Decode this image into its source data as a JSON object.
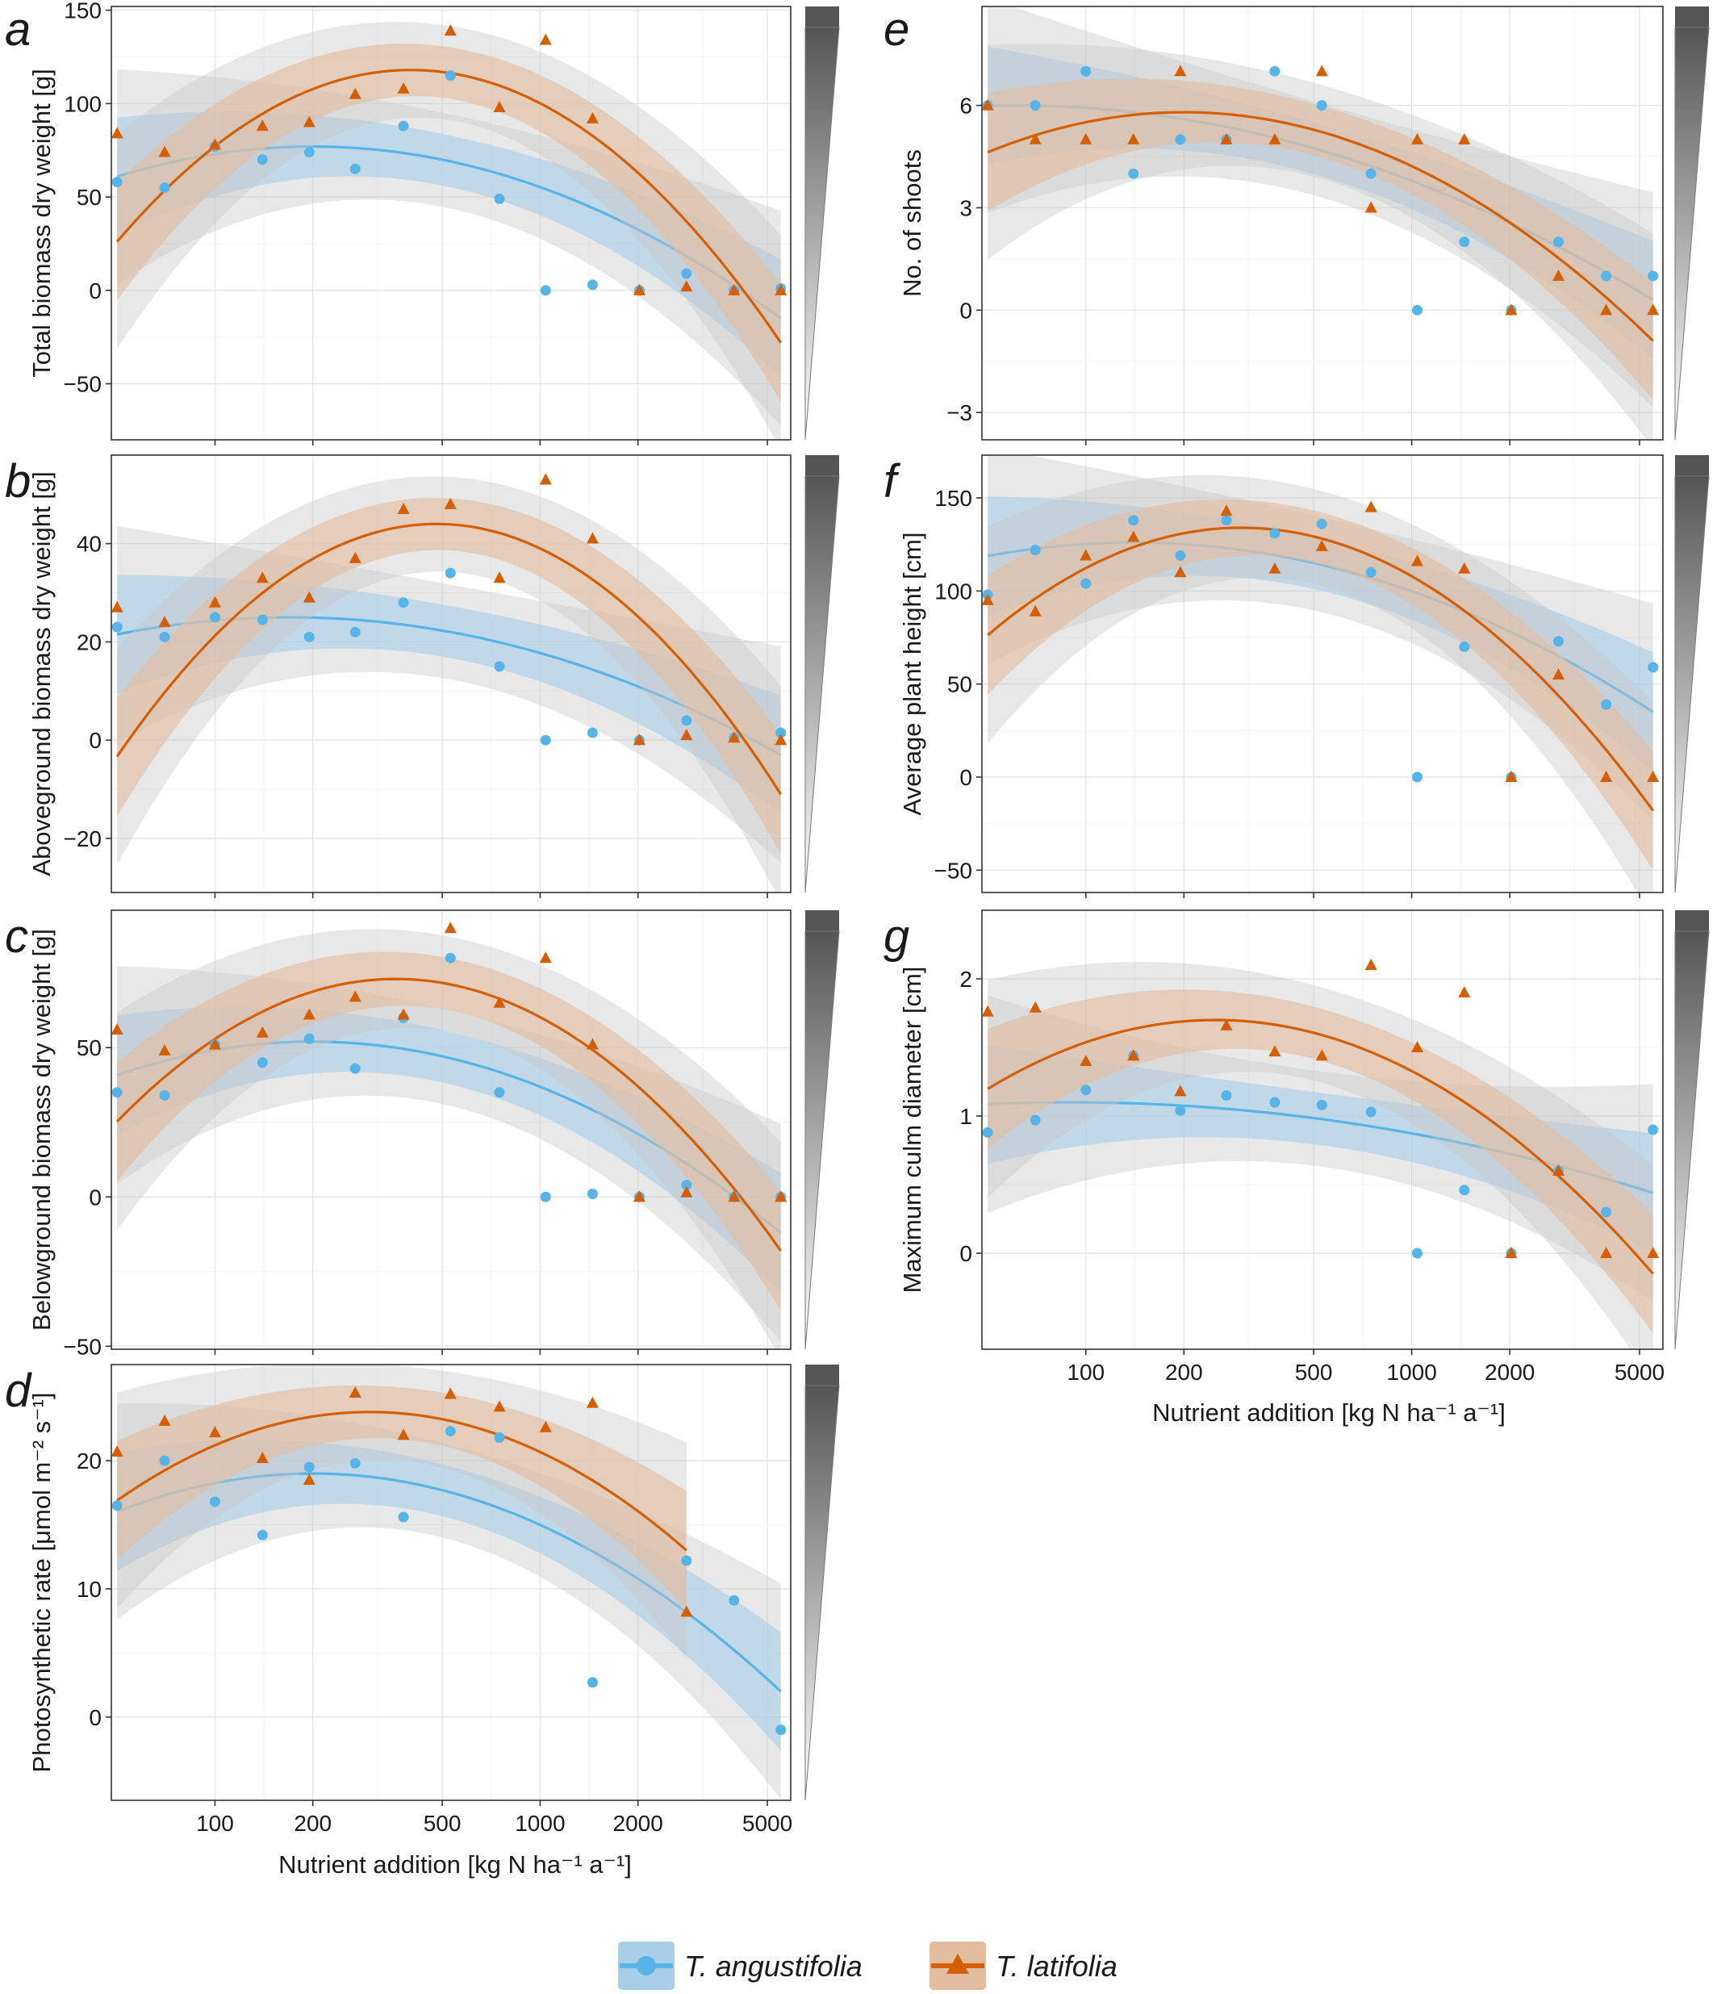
{
  "figure": {
    "xlabel": "Nutrient addition [kg N ha⁻¹ a⁻¹]",
    "x_tick_labels": [
      "100",
      "200",
      "500",
      "1000",
      "2000",
      "5000"
    ],
    "x_tick_values": [
      100,
      200,
      500,
      1000,
      2000,
      5000
    ],
    "x_scale": "log",
    "grid": true,
    "band_colors": {
      "angustifolia": "#a9cfe8",
      "latifolia": "#e3bd9f",
      "ci": "#c8c8c8"
    },
    "gradient_colors": {
      "top": "#555555",
      "bottom": "#ffffff"
    },
    "legend": {
      "position": "bottom-center",
      "items": [
        {
          "label": "T. angustifolia",
          "color": "#56b4e9",
          "marker": "circle"
        },
        {
          "label": "T. latifolia",
          "color": "#d55e00",
          "marker": "triangle"
        }
      ]
    }
  },
  "chart_data": [
    {
      "type": "scatter",
      "panel": "a",
      "ylabel": "Total biomass dry weight [g]",
      "ylim": [
        -80,
        152
      ],
      "yticks": [
        -50,
        0,
        50,
        100,
        150
      ],
      "series": [
        {
          "name": "T. angustifolia",
          "fit_peak": [
            200,
            77
          ],
          "fit_end": -15,
          "x": [
            50,
            70,
            100,
            140,
            195,
            270,
            380,
            530,
            750,
            1040,
            1450,
            2020,
            2820,
            3950,
            5500
          ],
          "y": [
            58,
            55,
            77,
            70,
            74,
            65,
            88,
            115,
            49,
            0,
            3,
            0,
            9,
            0,
            1
          ]
        },
        {
          "name": "T. latifolia",
          "fit_peak": [
            400,
            118
          ],
          "fit_end": -28,
          "x": [
            50,
            70,
            100,
            140,
            195,
            270,
            380,
            530,
            750,
            1040,
            1450,
            2020,
            2820,
            3950,
            5500
          ],
          "y": [
            84,
            74,
            78,
            88,
            90,
            105,
            108,
            139,
            98,
            134,
            92,
            0,
            2,
            0,
            0
          ]
        }
      ]
    },
    {
      "type": "scatter",
      "panel": "b",
      "ylabel": "Aboveground biomass dry weight [g]",
      "ylim": [
        -31,
        58
      ],
      "yticks": [
        -20,
        0,
        20,
        40
      ],
      "series": [
        {
          "name": "T. angustifolia",
          "fit_peak": [
            170,
            25
          ],
          "fit_end": -3,
          "x": [
            50,
            70,
            100,
            140,
            195,
            270,
            380,
            530,
            750,
            1040,
            1450,
            2020,
            2820,
            3950,
            5500
          ],
          "y": [
            23,
            21,
            25,
            24.5,
            21,
            22,
            28,
            34,
            15,
            0,
            1.5,
            0,
            4,
            0.5,
            1.5
          ]
        },
        {
          "name": "T. latifolia",
          "fit_peak": [
            480,
            44
          ],
          "fit_end": -11,
          "x": [
            50,
            70,
            100,
            140,
            195,
            270,
            380,
            530,
            750,
            1040,
            1450,
            2020,
            2820,
            3950,
            5500
          ],
          "y": [
            27,
            24,
            28,
            33,
            29,
            37,
            47,
            48,
            33,
            53,
            41,
            0,
            1,
            0.5,
            0
          ]
        }
      ]
    },
    {
      "type": "scatter",
      "panel": "c",
      "ylabel": "Belowground biomass dry weight [g]",
      "ylim": [
        -51,
        96
      ],
      "yticks": [
        -50,
        0,
        50
      ],
      "series": [
        {
          "name": "T. angustifolia",
          "fit_peak": [
            200,
            52
          ],
          "fit_end": -12,
          "x": [
            50,
            70,
            100,
            140,
            195,
            270,
            380,
            530,
            750,
            1040,
            1450,
            2020,
            2820,
            3950,
            5500
          ],
          "y": [
            35,
            34,
            51,
            45,
            53,
            43,
            60,
            80,
            35,
            0,
            1,
            0,
            4,
            0,
            0
          ]
        },
        {
          "name": "T. latifolia",
          "fit_peak": [
            360,
            73
          ],
          "fit_end": -18,
          "x": [
            50,
            70,
            100,
            140,
            195,
            270,
            380,
            530,
            750,
            1040,
            1450,
            2020,
            2820,
            3950,
            5500
          ],
          "y": [
            56,
            49,
            51,
            55,
            61,
            67,
            61,
            90,
            65,
            80,
            51,
            0,
            1.5,
            0,
            0
          ]
        }
      ]
    },
    {
      "type": "scatter",
      "panel": "d",
      "ylabel": "Photosynthetic rate [μmol m⁻² s⁻¹]",
      "ylim": [
        -6.5,
        27.5
      ],
      "yticks": [
        0,
        10,
        20
      ],
      "series": [
        {
          "name": "T. angustifolia",
          "fit_peak": [
            200,
            19
          ],
          "fit_end": 2,
          "x": [
            50,
            70,
            100,
            140,
            195,
            270,
            380,
            530,
            750,
            1450,
            2820,
            3950,
            5500
          ],
          "y": [
            16.5,
            20,
            16.8,
            14.2,
            19.5,
            19.8,
            15.6,
            22.3,
            21.8,
            2.7,
            12.2,
            9.1,
            -1
          ]
        },
        {
          "name": "T. latifolia",
          "fit_peak": [
            300,
            23.8
          ],
          "fit_end": 13,
          "x": [
            50,
            70,
            100,
            140,
            195,
            270,
            380,
            530,
            750,
            1040,
            1450,
            2820
          ],
          "y": [
            20.7,
            23.1,
            22.2,
            20.2,
            18.5,
            25.3,
            22.0,
            25.2,
            24.2,
            22.6,
            24.5,
            8.2
          ]
        }
      ]
    },
    {
      "type": "scatter",
      "panel": "e",
      "ylabel": "No. of shoots",
      "ylim": [
        -3.8,
        8.9
      ],
      "yticks": [
        -3,
        0,
        3,
        6
      ],
      "series": [
        {
          "name": "T. angustifolia",
          "fit_peak": [
            60,
            6
          ],
          "fit_end": 0.3,
          "x": [
            50,
            70,
            100,
            140,
            195,
            270,
            380,
            530,
            750,
            1040,
            1450,
            2020,
            2820,
            3950,
            5500
          ],
          "y": [
            6,
            6,
            7,
            4,
            5,
            5,
            7,
            6,
            4,
            0,
            2,
            0,
            2,
            1,
            1
          ]
        },
        {
          "name": "T. latifolia",
          "fit_peak": [
            200,
            5.8
          ],
          "fit_end": -0.9,
          "x": [
            50,
            70,
            100,
            140,
            195,
            270,
            380,
            530,
            750,
            1040,
            1450,
            2020,
            2820,
            3950,
            5500
          ],
          "y": [
            6,
            5,
            5,
            5,
            7,
            5,
            5,
            7,
            3,
            5,
            5,
            0,
            1,
            0,
            0
          ]
        }
      ]
    },
    {
      "type": "scatter",
      "panel": "f",
      "ylabel": "Average plant height [cm]",
      "ylim": [
        -62,
        173
      ],
      "yticks": [
        -50,
        0,
        50,
        100,
        150
      ],
      "series": [
        {
          "name": "T. angustifolia",
          "fit_peak": [
            140,
            126
          ],
          "fit_end": 35,
          "x": [
            50,
            70,
            100,
            140,
            195,
            270,
            380,
            530,
            750,
            1040,
            1450,
            2020,
            2820,
            3950,
            5500
          ],
          "y": [
            98,
            122,
            104,
            138,
            119,
            138,
            131,
            136,
            110,
            0,
            70,
            0,
            73,
            39,
            59
          ]
        },
        {
          "name": "T. latifolia",
          "fit_peak": [
            300,
            134
          ],
          "fit_end": -18,
          "x": [
            50,
            70,
            100,
            140,
            195,
            270,
            380,
            530,
            750,
            1040,
            1450,
            2020,
            2820,
            3950,
            5500
          ],
          "y": [
            95,
            89,
            119,
            129,
            110,
            143,
            112,
            124,
            145,
            116,
            112,
            0,
            55,
            0,
            0
          ]
        }
      ]
    },
    {
      "type": "scatter",
      "panel": "g",
      "ylabel": "Maximum culm diameter [cm]",
      "ylim": [
        -0.7,
        2.5
      ],
      "yticks": [
        0,
        1,
        2
      ],
      "series": [
        {
          "name": "T. angustifolia",
          "fit_peak": [
            90,
            1.1
          ],
          "fit_end": 0.44,
          "x": [
            50,
            70,
            100,
            140,
            195,
            270,
            380,
            530,
            750,
            1040,
            1450,
            2020,
            2820,
            3950,
            5500
          ],
          "y": [
            0.88,
            0.97,
            1.19,
            1.44,
            1.04,
            1.15,
            1.1,
            1.08,
            1.03,
            0,
            0.46,
            0,
            0.6,
            0.3,
            0.9
          ]
        },
        {
          "name": "T. latifolia",
          "fit_peak": [
            250,
            1.7
          ],
          "fit_end": -0.15,
          "x": [
            50,
            70,
            100,
            140,
            195,
            270,
            380,
            530,
            750,
            1040,
            1450,
            2020,
            2820,
            3950,
            5500
          ],
          "y": [
            1.76,
            1.79,
            1.4,
            1.44,
            1.18,
            1.66,
            1.47,
            1.44,
            2.1,
            1.5,
            1.9,
            0,
            0.6,
            0,
            0
          ]
        }
      ]
    }
  ]
}
